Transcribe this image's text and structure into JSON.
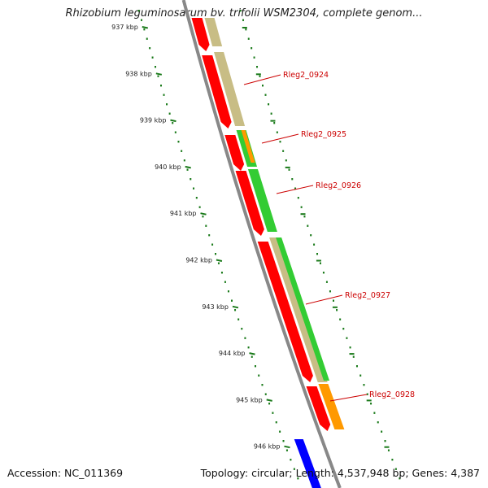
{
  "title": "Rhizobium leguminosarum bv. trifolii WSM2304, complete genom...",
  "footer": {
    "accession": "Accession: NC_011369",
    "stats": "Topology: circular; Length: 4,537,948 bp; Genes: 4,387"
  },
  "ticks": [
    {
      "label": "937 kbp",
      "kbp": 937
    },
    {
      "label": "938 kbp",
      "kbp": 938
    },
    {
      "label": "939 kbp",
      "kbp": 939
    },
    {
      "label": "940 kbp",
      "kbp": 940
    },
    {
      "label": "941 kbp",
      "kbp": 941
    },
    {
      "label": "942 kbp",
      "kbp": 942
    },
    {
      "label": "943 kbp",
      "kbp": 943
    },
    {
      "label": "944 kbp",
      "kbp": 944
    },
    {
      "label": "945 kbp",
      "kbp": 945
    },
    {
      "label": "946 kbp",
      "kbp": 946
    }
  ],
  "genes": [
    {
      "label": "Rleg2_0924",
      "start_kbp": 937.95,
      "end_kbp": 939.3
    },
    {
      "label": "Rleg2_0925",
      "start_kbp": 939.35,
      "end_kbp": 939.95
    },
    {
      "label": "Rleg2_0926",
      "start_kbp": 940.05,
      "end_kbp": 941.5
    },
    {
      "label": "Rleg2_0927",
      "start_kbp": 941.55,
      "end_kbp": 944.65
    },
    {
      "label": "Rleg2_0928",
      "start_kbp": 944.7,
      "end_kbp": 945.7
    }
  ],
  "colors": {
    "cds": "#ff0000",
    "gene": "#c8bd85",
    "rrna_like": "#33cc33",
    "orange": "#ff9900",
    "other_strand": "#0000ff",
    "backbone": "#888888",
    "ticks": "#1a7a1a",
    "labels": "#cc0000"
  }
}
